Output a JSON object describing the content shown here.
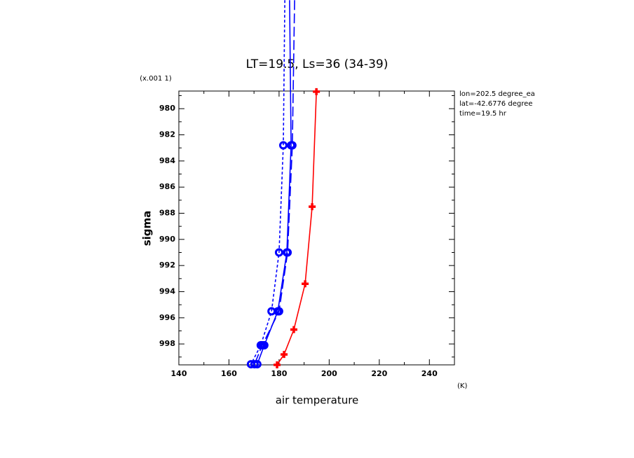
{
  "chart_data": {
    "type": "line",
    "title": "LT=19.5, Ls=36 (34-39)",
    "x_label": "air temperature",
    "x_units": "(K)",
    "y_label": "sigma",
    "y_units": "(x.001 1)",
    "annotations": [
      "lon=202.5 degree_ea",
      "lat=-42.6776 degree",
      "time=19.5 hr"
    ],
    "xlim": [
      140,
      250
    ],
    "xticks": [
      140,
      160,
      180,
      200,
      220,
      240
    ],
    "xminorticks": [
      150,
      170,
      190,
      210,
      230,
      250
    ],
    "ylim": [
      999.6,
      978.65
    ],
    "yticks": [
      980,
      982,
      984,
      986,
      988,
      990,
      992,
      994,
      996,
      998
    ],
    "yminorticks": [
      979,
      981,
      983,
      985,
      987,
      989,
      991,
      993,
      995,
      997,
      999
    ],
    "series": [
      {
        "color": "#ff0000",
        "marker": "plus",
        "dash": "solid",
        "x": [
          194.9,
          193.2,
          190.4,
          185.9,
          182.0,
          179.2
        ],
        "values": [
          978.7,
          987.5,
          993.4,
          996.9,
          998.8,
          999.6
        ]
      },
      {
        "color": "#0000ff",
        "marker": "circle",
        "dash": "short",
        "x": [
          182.3,
          181.7,
          180.0,
          177.0,
          172.7,
          168.8
        ],
        "values": [
          971.7,
          982.8,
          991.0,
          995.5,
          998.1,
          999.55
        ]
      },
      {
        "color": "#0000ff",
        "marker": "circle",
        "dash": "solid",
        "x": [
          184.2,
          184.8,
          183.1,
          179.5,
          174.1,
          171.3
        ],
        "values": [
          971.7,
          982.8,
          991.0,
          995.5,
          998.1,
          999.55
        ]
      },
      {
        "color": "#0000ff",
        "marker": "circle",
        "dash": "long",
        "x": [
          186.2,
          185.3,
          183.4,
          180.0,
          173.3,
          170.2
        ],
        "values": [
          971.7,
          982.8,
          991.0,
          995.5,
          998.1,
          999.55
        ]
      }
    ]
  }
}
